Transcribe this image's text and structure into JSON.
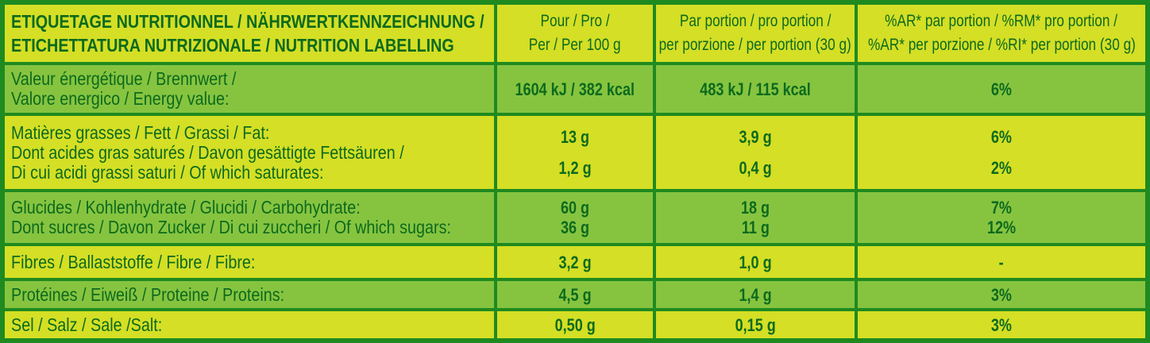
{
  "header": {
    "title_line1": "ETIQUETAGE NUTRITIONNEL / NÄHRWERTKENNZEICHNUNG /",
    "title_line2": "ETICHETTATURA NUTRIZIONALE / NUTRITION LABELLING",
    "col_per100_line1": "Pour / Pro /",
    "col_per100_line2": "Per / Per 100 g",
    "col_portion_line1": "Par portion / pro portion /",
    "col_portion_line2": "per porzione / per portion (30 g)",
    "col_ri_line1": "%AR* par portion / %RM* pro portion /",
    "col_ri_line2": "%AR* per porzione / %RI* per portion (30 g)"
  },
  "rows": {
    "energy": {
      "label_line1": "Valeur énergétique / Brennwert /",
      "label_line2": "Valore energico / Energy value:",
      "per100": "1604 kJ / 382 kcal",
      "portion": "483 kJ / 115 kcal",
      "ri": "6%"
    },
    "fat": {
      "label": "Matières grasses / Fett / Grassi / Fat:",
      "per100": "13 g",
      "portion": "3,9 g",
      "ri": "6%"
    },
    "saturates": {
      "label_line1": "Dont acides gras saturés / Davon gesättigte Fettsäuren /",
      "label_line2": "Di cui acidi grassi saturi / Of which saturates:",
      "per100": "1,2 g",
      "portion": "0,4 g",
      "ri": "2%"
    },
    "carbs": {
      "label": "Glucides / Kohlenhydrate / Glucidi / Carbohydrate:",
      "per100": "60 g",
      "portion": "18 g",
      "ri": "7%"
    },
    "sugars": {
      "label": "Dont sucres / Davon Zucker / Di cui zuccheri / Of which sugars:",
      "per100": "36 g",
      "portion": "11 g",
      "ri": "12%"
    },
    "fibre": {
      "label": "Fibres / Ballaststoffe / Fibre / Fibre:",
      "per100": "3,2 g",
      "portion": "1,0 g",
      "ri": "-"
    },
    "protein": {
      "label": "Protéines / Eiweiß / Proteine / Proteins:",
      "per100": "4,5 g",
      "portion": "1,4 g",
      "ri": "3%"
    },
    "salt": {
      "label": "Sel / Salz / Sale /Salt:",
      "per100": "0,50 g",
      "portion": "0,15 g",
      "ri": "3%"
    }
  }
}
